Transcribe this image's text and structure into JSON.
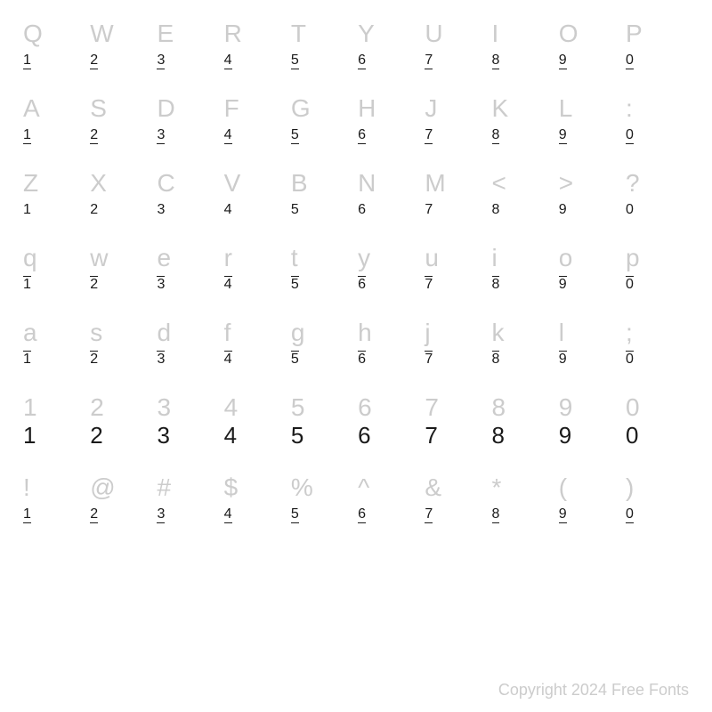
{
  "grid": {
    "rows": [
      {
        "glyph_style": "normal",
        "num_style": "underline",
        "glyphs": [
          "Q",
          "W",
          "E",
          "R",
          "T",
          "Y",
          "U",
          "I",
          "O",
          "P"
        ],
        "nums": [
          "1",
          "2",
          "3",
          "4",
          "5",
          "6",
          "7",
          "8",
          "9",
          "0"
        ]
      },
      {
        "glyph_style": "normal",
        "num_style": "underline",
        "glyphs": [
          "A",
          "S",
          "D",
          "F",
          "G",
          "H",
          "J",
          "K",
          "L",
          ":"
        ],
        "nums": [
          "1",
          "2",
          "3",
          "4",
          "5",
          "6",
          "7",
          "8",
          "9",
          "0"
        ]
      },
      {
        "glyph_style": "normal",
        "num_style": "plain",
        "glyphs": [
          "Z",
          "X",
          "C",
          "V",
          "B",
          "N",
          "M",
          "<",
          ">",
          "?"
        ],
        "nums": [
          "1",
          "2",
          "3",
          "4",
          "5",
          "6",
          "7",
          "8",
          "9",
          "0"
        ]
      },
      {
        "glyph_style": "normal",
        "num_style": "overline",
        "glyphs": [
          "q",
          "w",
          "e",
          "r",
          "t",
          "y",
          "u",
          "i",
          "o",
          "p"
        ],
        "nums": [
          "1",
          "2",
          "3",
          "4",
          "5",
          "6",
          "7",
          "8",
          "9",
          "0"
        ]
      },
      {
        "glyph_style": "normal",
        "num_style": "overline",
        "glyphs": [
          "a",
          "s",
          "d",
          "f",
          "g",
          "h",
          "j",
          "k",
          "l",
          ";"
        ],
        "nums": [
          "1",
          "2",
          "3",
          "4",
          "5",
          "6",
          "7",
          "8",
          "9",
          "0"
        ]
      },
      {
        "glyph_style": "normal",
        "num_style": "big",
        "glyphs": [
          "1",
          "2",
          "3",
          "4",
          "5",
          "6",
          "7",
          "8",
          "9",
          "0"
        ],
        "nums": [
          "1",
          "2",
          "3",
          "4",
          "5",
          "6",
          "7",
          "8",
          "9",
          "0"
        ]
      },
      {
        "glyph_style": "normal",
        "num_style": "underline",
        "glyphs": [
          "!",
          "@",
          "#",
          "$",
          "%",
          "^",
          "&",
          "*",
          "(",
          ")"
        ],
        "nums": [
          "1",
          "2",
          "3",
          "4",
          "5",
          "6",
          "7",
          "8",
          "9",
          "0"
        ]
      }
    ]
  },
  "colors": {
    "glyph": "#cccccc",
    "num": "#1a1a1a",
    "background": "#ffffff",
    "copyright": "#cccccc"
  },
  "typography": {
    "glyph_fontsize": 28,
    "num_fontsize": 16,
    "num_big_fontsize": 26,
    "copyright_fontsize": 18,
    "font_family": "Arial, Helvetica, sans-serif"
  },
  "copyright": "Copyright 2024 Free Fonts"
}
